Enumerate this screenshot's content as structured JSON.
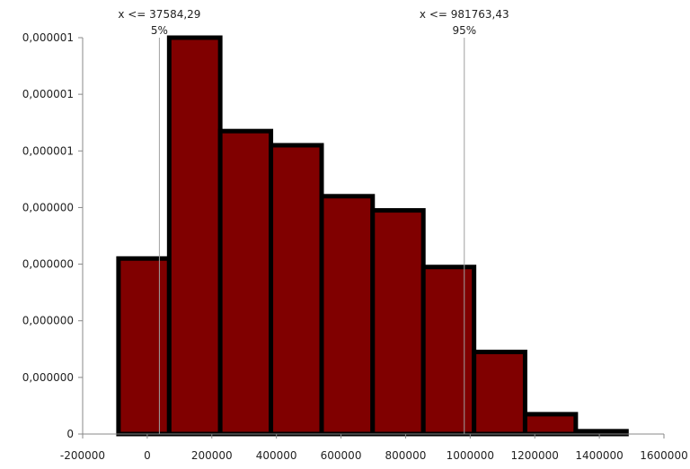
{
  "chart_data": {
    "type": "bar",
    "title": "",
    "xlabel": "",
    "ylabel": "",
    "xlim": [
      -200000,
      1600000
    ],
    "ylim": [
      0,
      1.4e-06
    ],
    "x_ticks": [
      "-200000",
      "0",
      "200000",
      "400000",
      "600000",
      "800000",
      "1000000",
      "1200000",
      "1400000",
      "1600000"
    ],
    "y_ticks": [
      "0",
      "0,000000",
      "0,000000",
      "0,000000",
      "0,000000",
      "0,000001",
      "0,000001",
      "0,000001"
    ],
    "bins": [
      {
        "x0": -89000,
        "x1": 68000,
        "density": 6.2e-07
      },
      {
        "x0": 68000,
        "x1": 226000,
        "density": 1.4e-06
      },
      {
        "x0": 226000,
        "x1": 383000,
        "density": 1.07e-06
      },
      {
        "x0": 383000,
        "x1": 540000,
        "density": 1.02e-06
      },
      {
        "x0": 540000,
        "x1": 698000,
        "density": 8.4e-07
      },
      {
        "x0": 698000,
        "x1": 855000,
        "density": 7.9e-07
      },
      {
        "x0": 855000,
        "x1": 1012000,
        "density": 5.9e-07
      },
      {
        "x0": 1012000,
        "x1": 1170000,
        "density": 2.9e-07
      },
      {
        "x0": 1170000,
        "x1": 1327000,
        "density": 7e-08
      },
      {
        "x0": 1327000,
        "x1": 1484000,
        "density": 1e-08
      }
    ],
    "markers": [
      {
        "x": 37584.29,
        "label": "x <= 37584,29",
        "pct": "5%"
      },
      {
        "x": 981763.43,
        "label": "x <= 981763,43",
        "pct": "95%"
      }
    ],
    "bar_color": "#800000",
    "bar_edge_color": "#000000",
    "marker_color": "#a0a0a0",
    "grid": false
  }
}
